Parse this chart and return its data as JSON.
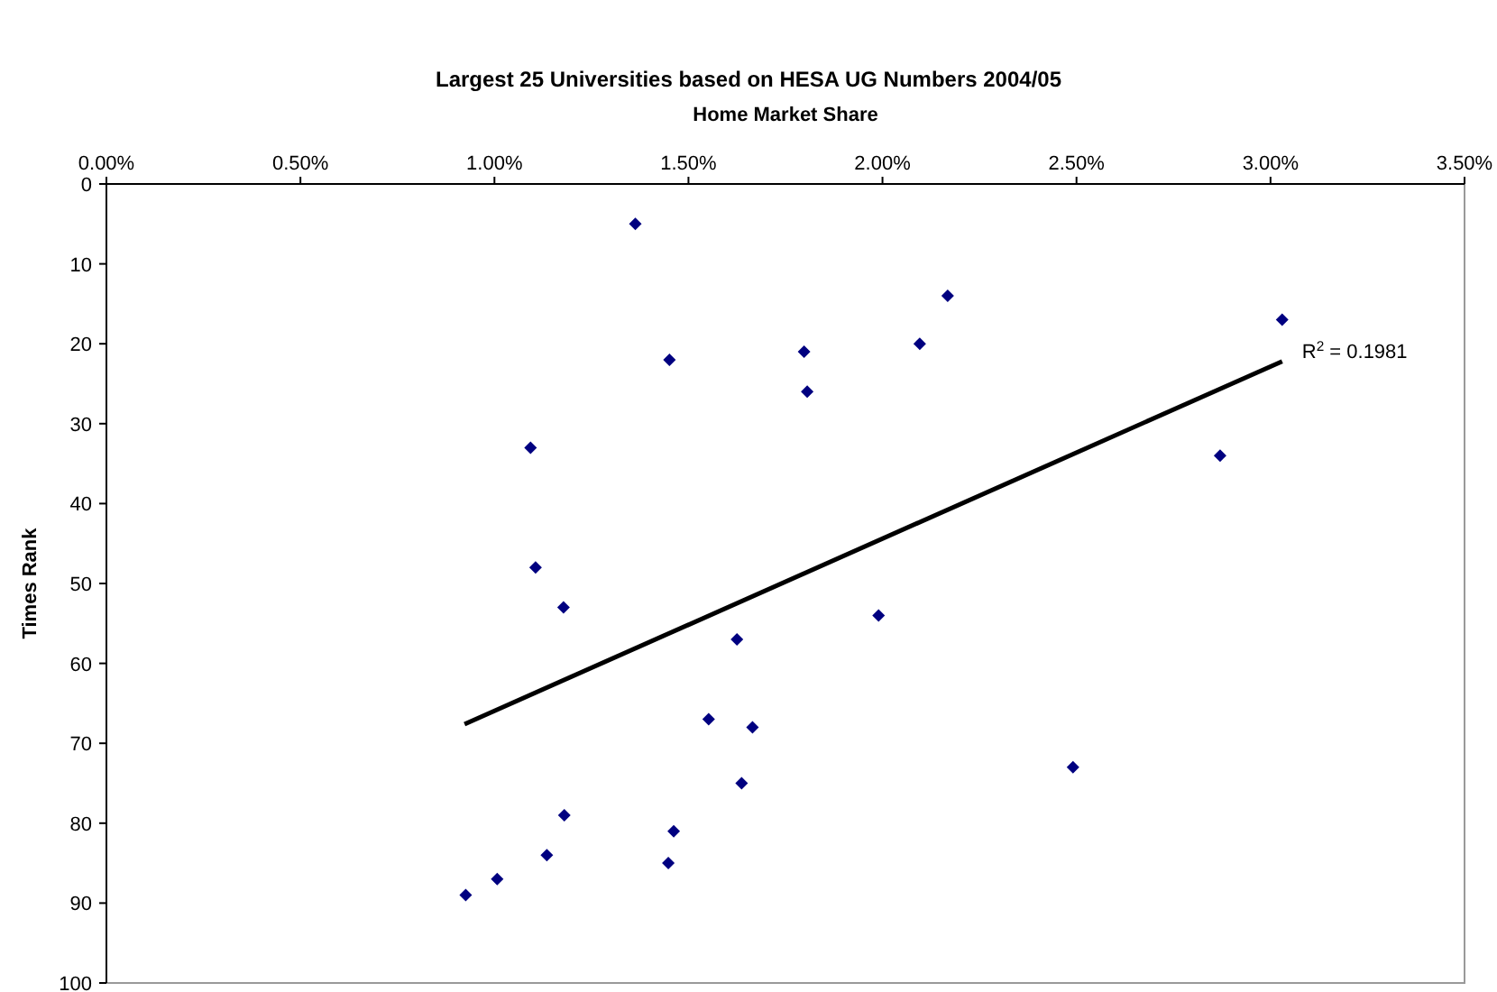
{
  "chart_data": {
    "type": "scatter",
    "title": "Largest 25 Universities based on HESA UG Numbers 2004/05",
    "xlabel": "Home Market Share",
    "ylabel": "Times Rank",
    "xlim": [
      0,
      3.5
    ],
    "xticks": [
      {
        "value": 0,
        "label": "0.00%"
      },
      {
        "value": 0.5,
        "label": "0.50%"
      },
      {
        "value": 1,
        "label": "1.00%"
      },
      {
        "value": 1.5,
        "label": "1.50%"
      },
      {
        "value": 2,
        "label": "2.00%"
      },
      {
        "value": 2.5,
        "label": "2.50%"
      },
      {
        "value": 3,
        "label": "3.00%"
      },
      {
        "value": 3.5,
        "label": "3.50%"
      }
    ],
    "ylim": [
      100,
      0
    ],
    "yticks": [
      0,
      10,
      20,
      30,
      40,
      50,
      60,
      70,
      80,
      90,
      100
    ],
    "marker": "diamond",
    "series": [
      {
        "color": "#000080",
        "x": [
          1.363,
          1.451,
          1.798,
          1.806,
          2.096,
          2.168,
          1.093,
          3.03,
          2.87,
          1.99,
          2.491,
          1.106,
          1.178,
          1.625,
          1.552,
          1.665,
          1.637,
          1.18,
          1.462,
          1.135,
          1.448,
          1.007,
          0.926
        ],
        "values": [
          5,
          22,
          21,
          26,
          20,
          14,
          33,
          17,
          34,
          54,
          73,
          48,
          53,
          57,
          67,
          68,
          75,
          79,
          81,
          84,
          85,
          87,
          89
        ]
      },
      {
        "type": "line",
        "marker": "none",
        "color": "#000000",
        "x": [
          0.923,
          3.03
        ],
        "values": [
          67.6,
          22.2
        ]
      }
    ],
    "annotations": [
      {
        "text": "R$^{2}$ = 0.1981",
        "x": 3.03,
        "y": 22.2
      }
    ]
  }
}
